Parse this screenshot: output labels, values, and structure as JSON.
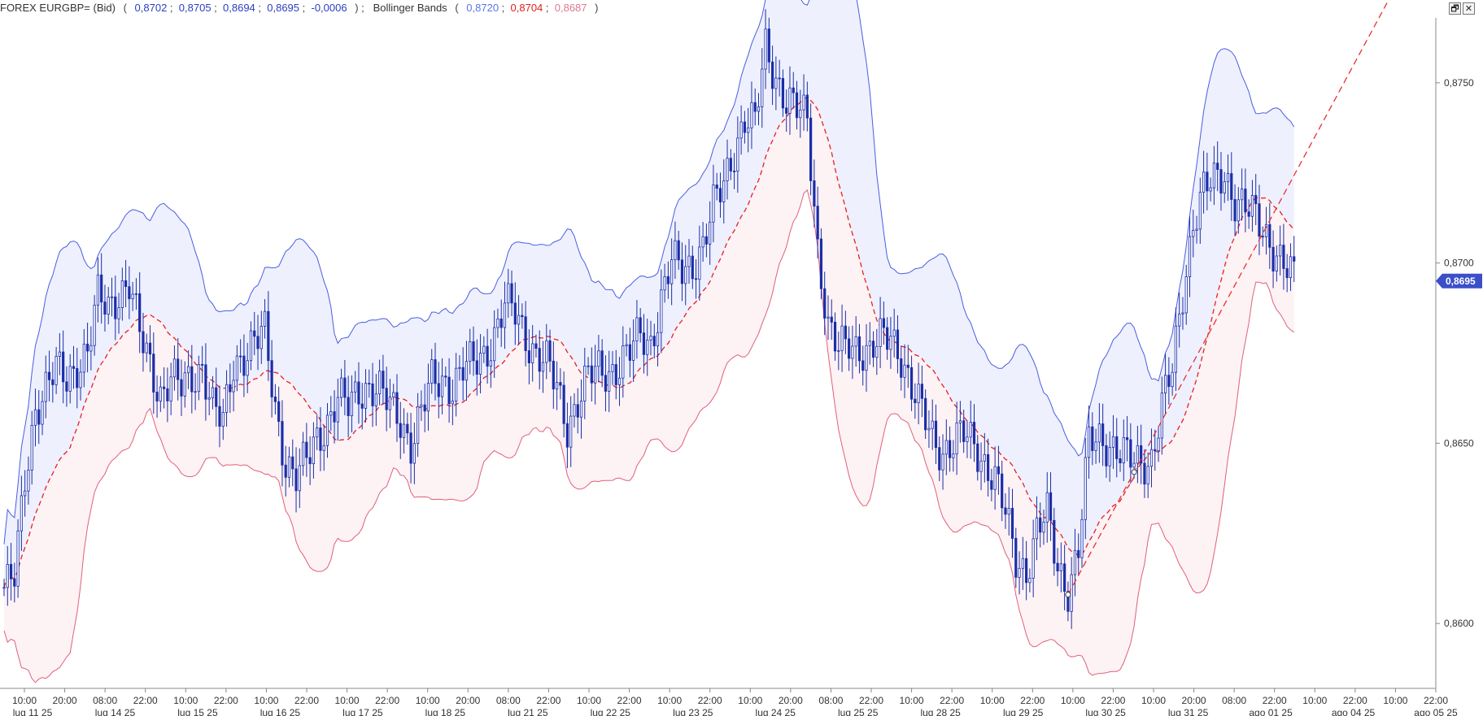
{
  "header": {
    "instrument": "FOREX EURGBP= (Bid)",
    "values": [
      "0,8702",
      "0,8705",
      "0,8694",
      "0,8695",
      "-0,0006"
    ],
    "indicator": "Bollinger Bands",
    "bb_values": [
      "0,8720",
      "0,8704",
      "0,8687"
    ]
  },
  "window_controls": {
    "restore_icon": "restore-icon",
    "close_icon": "close-icon",
    "restore_label": "🗗",
    "close_label": "✕"
  },
  "colors": {
    "candle": "#1a2ea8",
    "upper_band": "#4a5ee0",
    "lower_band": "#e0607a",
    "middle_band": "#e82020",
    "upper_fill": "#eef0fd",
    "lower_fill": "#fdf2f4",
    "trendline": "#e83030",
    "price_badge": "#3b4fc9",
    "header_blue": "#2b3fbf",
    "bb_upper_text": "#5a76e8",
    "bb_middle_text": "#e02020",
    "bb_lower_text": "#e07890"
  },
  "chart_data": {
    "type": "candlestick",
    "series_name": "FOREX EURGBP= (Bid)",
    "ylim": [
      0.8582,
      0.8768
    ],
    "y_ticks": [
      "0,8750",
      "0,8700",
      "0,8650",
      "0,8600"
    ],
    "y_tick_values": [
      0.875,
      0.87,
      0.865,
      0.86
    ],
    "last_price_label": "0,8695",
    "last_price": 0.8695,
    "x_time_labels": [
      "10:00",
      "20:00",
      "08:00",
      "22:00",
      "10:00",
      "22:00",
      "10:00",
      "22:00",
      "10:00",
      "22:00",
      "10:00",
      "20:00",
      "08:00",
      "22:00",
      "10:00",
      "22:00",
      "10:00",
      "22:00",
      "10:00",
      "20:00",
      "08:00",
      "22:00",
      "10:00",
      "22:00",
      "10:00",
      "22:00",
      "10:00",
      "22:00",
      "10:00",
      "20:00",
      "08:00",
      "22:00",
      "10:00",
      "22:00",
      "10:00",
      "22:00"
    ],
    "x_date_labels": [
      "lug 11 25",
      "lug 14 25",
      "lug 15 25",
      "lug 16 25",
      "lug 17 25",
      "lug 18 25",
      "lug 21 25",
      "lug 22 25",
      "lug 23 25",
      "lug 24 25",
      "lug 25 25",
      "lug 28 25",
      "lug 29 25",
      "lug 30 25",
      "lug 31 25",
      "ago 01 25",
      "ago 04 25",
      "ago 05 25"
    ],
    "close_path": [
      [
        0,
        0.861
      ],
      [
        3,
        0.8612
      ],
      [
        6,
        0.864
      ],
      [
        9,
        0.866
      ],
      [
        12,
        0.8665
      ],
      [
        15,
        0.867
      ],
      [
        18,
        0.8668
      ],
      [
        21,
        0.8672
      ],
      [
        24,
        0.8675
      ],
      [
        27,
        0.869
      ],
      [
        30,
        0.8688
      ],
      [
        33,
        0.8692
      ],
      [
        36,
        0.8694
      ],
      [
        39,
        0.868
      ],
      [
        42,
        0.8672
      ],
      [
        45,
        0.8664
      ],
      [
        48,
        0.8668
      ],
      [
        51,
        0.8665
      ],
      [
        54,
        0.8668
      ],
      [
        57,
        0.8672
      ],
      [
        60,
        0.866
      ],
      [
        63,
        0.8655
      ],
      [
        66,
        0.8672
      ],
      [
        69,
        0.8675
      ],
      [
        72,
        0.8678
      ],
      [
        75,
        0.868
      ],
      [
        78,
        0.866
      ],
      [
        81,
        0.8645
      ],
      [
        84,
        0.864
      ],
      [
        87,
        0.8645
      ],
      [
        90,
        0.8652
      ],
      [
        93,
        0.8656
      ],
      [
        96,
        0.8662
      ],
      [
        99,
        0.866
      ],
      [
        102,
        0.8665
      ],
      [
        105,
        0.8666
      ],
      [
        108,
        0.8664
      ],
      [
        111,
        0.866
      ],
      [
        114,
        0.8657
      ],
      [
        117,
        0.865
      ],
      [
        120,
        0.8658
      ],
      [
        123,
        0.8667
      ],
      [
        126,
        0.8668
      ],
      [
        129,
        0.8666
      ],
      [
        132,
        0.867
      ],
      [
        135,
        0.8672
      ],
      [
        138,
        0.8675
      ],
      [
        141,
        0.868
      ],
      [
        144,
        0.8688
      ],
      [
        147,
        0.8686
      ],
      [
        150,
        0.868
      ],
      [
        153,
        0.8675
      ],
      [
        156,
        0.8672
      ],
      [
        159,
        0.8665
      ],
      [
        162,
        0.8655
      ],
      [
        165,
        0.8662
      ],
      [
        168,
        0.8668
      ],
      [
        171,
        0.867
      ],
      [
        174,
        0.867
      ],
      [
        177,
        0.8672
      ],
      [
        180,
        0.8675
      ],
      [
        183,
        0.868
      ],
      [
        186,
        0.8678
      ],
      [
        189,
        0.869
      ],
      [
        192,
        0.87
      ],
      [
        195,
        0.8698
      ],
      [
        198,
        0.87
      ],
      [
        201,
        0.8705
      ],
      [
        204,
        0.8715
      ],
      [
        207,
        0.8722
      ],
      [
        210,
        0.8732
      ],
      [
        213,
        0.874
      ],
      [
        216,
        0.8738
      ],
      [
        219,
        0.876
      ],
      [
        222,
        0.8752
      ],
      [
        225,
        0.8745
      ],
      [
        228,
        0.8742
      ],
      [
        231,
        0.874
      ],
      [
        234,
        0.8705
      ],
      [
        237,
        0.8682
      ],
      [
        240,
        0.8675
      ],
      [
        243,
        0.8678
      ],
      [
        246,
        0.8677
      ],
      [
        249,
        0.8675
      ],
      [
        252,
        0.8678
      ],
      [
        255,
        0.868
      ],
      [
        258,
        0.8675
      ],
      [
        261,
        0.8665
      ],
      [
        264,
        0.8658
      ],
      [
        267,
        0.8652
      ],
      [
        270,
        0.8648
      ],
      [
        273,
        0.865
      ],
      [
        276,
        0.8652
      ],
      [
        279,
        0.865
      ],
      [
        282,
        0.8645
      ],
      [
        285,
        0.864
      ],
      [
        288,
        0.863
      ],
      [
        291,
        0.8618
      ],
      [
        294,
        0.8615
      ],
      [
        297,
        0.8625
      ],
      [
        300,
        0.863
      ],
      [
        303,
        0.8616
      ],
      [
        306,
        0.861
      ],
      [
        309,
        0.862
      ],
      [
        312,
        0.865
      ],
      [
        315,
        0.8652
      ],
      [
        318,
        0.865
      ],
      [
        321,
        0.8647
      ],
      [
        324,
        0.8645
      ],
      [
        327,
        0.8645
      ],
      [
        330,
        0.8646
      ],
      [
        333,
        0.866
      ],
      [
        336,
        0.867
      ],
      [
        339,
        0.8692
      ],
      [
        342,
        0.8712
      ],
      [
        345,
        0.872
      ],
      [
        348,
        0.8722
      ],
      [
        351,
        0.8725
      ],
      [
        354,
        0.8718
      ],
      [
        357,
        0.8715
      ],
      [
        360,
        0.8712
      ],
      [
        363,
        0.8708
      ],
      [
        366,
        0.8703
      ],
      [
        369,
        0.8698
      ],
      [
        371,
        0.8695
      ]
    ],
    "bollinger": {
      "period": 20,
      "upper": [
        0.872
      ],
      "middle": [
        0.8704
      ],
      "lower": [
        0.8687
      ]
    },
    "trendline": {
      "from_bar": 306,
      "from_price": 0.8608,
      "through_bar": 325,
      "through_price": 0.8642
    },
    "grid": false
  }
}
